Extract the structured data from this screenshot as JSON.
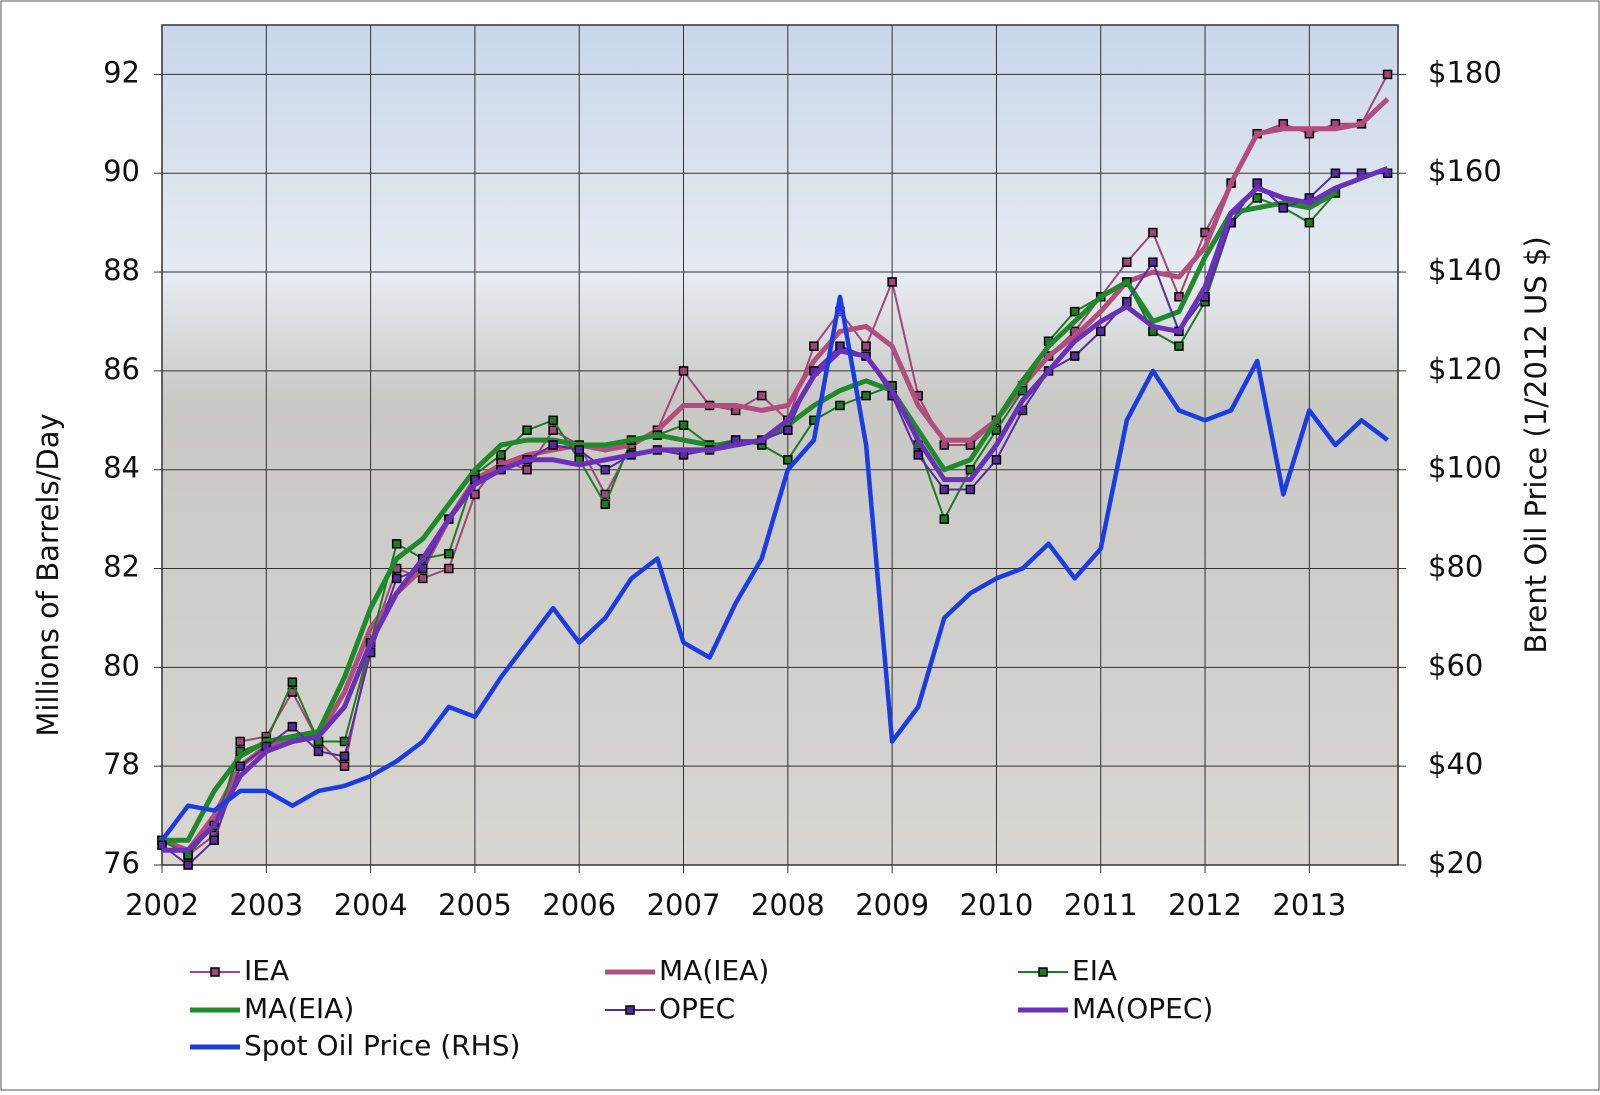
{
  "chart_data": {
    "type": "line",
    "x": [
      2002.0,
      2002.25,
      2002.5,
      2002.75,
      2003.0,
      2003.25,
      2003.5,
      2003.75,
      2004.0,
      2004.25,
      2004.5,
      2004.75,
      2005.0,
      2005.25,
      2005.5,
      2005.75,
      2006.0,
      2006.25,
      2006.5,
      2006.75,
      2007.0,
      2007.25,
      2007.5,
      2007.75,
      2008.0,
      2008.25,
      2008.5,
      2008.75,
      2009.0,
      2009.25,
      2009.5,
      2009.75,
      2010.0,
      2010.25,
      2010.5,
      2010.75,
      2011.0,
      2011.25,
      2011.5,
      2011.75,
      2012.0,
      2012.25,
      2012.5,
      2012.75,
      2013.0,
      2013.25,
      2013.5,
      2013.75
    ],
    "xlim": [
      2002,
      2013.85
    ],
    "xticks": [
      2002,
      2003,
      2004,
      2005,
      2006,
      2007,
      2008,
      2009,
      2010,
      2011,
      2012,
      2013
    ],
    "ylabel": "Millions of Barrels/Day",
    "ylim": [
      76,
      93
    ],
    "yticks": [
      76,
      78,
      80,
      82,
      84,
      86,
      88,
      90,
      92
    ],
    "y2label": "Brent Oil Price (1/2012 US $)",
    "y2lim": [
      20,
      190
    ],
    "y2ticks": [
      {
        "value": 20,
        "label": "$20"
      },
      {
        "value": 40,
        "label": "$40"
      },
      {
        "value": 60,
        "label": "$60"
      },
      {
        "value": 80,
        "label": "$80"
      },
      {
        "value": 100,
        "label": "$100"
      },
      {
        "value": 120,
        "label": "$120"
      },
      {
        "value": 140,
        "label": "$140"
      },
      {
        "value": 160,
        "label": "$160"
      },
      {
        "value": 180,
        "label": "$180"
      }
    ],
    "grid": true,
    "legend": "bottom",
    "series": [
      {
        "name": "IEA",
        "color": "#a0467a",
        "marker": "square",
        "values": [
          76.5,
          76.2,
          76.6,
          78.5,
          78.6,
          79.5,
          78.5,
          78.0,
          80.5,
          82.0,
          81.8,
          82.0,
          83.5,
          84.2,
          84.0,
          84.8,
          84.5,
          83.5,
          84.5,
          84.8,
          86.0,
          85.3,
          85.2,
          85.5,
          85.0,
          86.5,
          87.2,
          86.5,
          87.8,
          85.5,
          84.5,
          84.5,
          85.0,
          85.7,
          86.3,
          86.8,
          87.5,
          88.2,
          88.8,
          87.5,
          88.8,
          89.8,
          90.8,
          91.0,
          90.8,
          91.0,
          91.0,
          92.0
        ]
      },
      {
        "name": "MA(IEA)",
        "color": "#b24e7e",
        "values": [
          76.5,
          76.3,
          77.0,
          78.0,
          78.4,
          78.5,
          78.6,
          79.5,
          80.8,
          81.5,
          82.0,
          83.0,
          83.8,
          84.1,
          84.3,
          84.4,
          84.5,
          84.4,
          84.5,
          84.8,
          85.3,
          85.3,
          85.3,
          85.2,
          85.3,
          86.2,
          86.8,
          86.9,
          86.5,
          85.3,
          84.6,
          84.6,
          85.0,
          85.7,
          86.3,
          86.7,
          87.2,
          87.8,
          88.0,
          87.9,
          88.5,
          89.8,
          90.8,
          90.9,
          90.9,
          90.9,
          91.0,
          91.5
        ]
      },
      {
        "name": "EIA",
        "color": "#1f7a1f",
        "marker": "square",
        "values": [
          76.5,
          76.2,
          76.8,
          78.3,
          78.5,
          79.7,
          78.5,
          78.5,
          80.5,
          82.5,
          82.2,
          82.3,
          83.9,
          84.3,
          84.8,
          85.0,
          84.2,
          83.3,
          84.6,
          84.7,
          84.9,
          84.5,
          84.6,
          84.5,
          84.2,
          85.0,
          85.3,
          85.5,
          85.7,
          84.5,
          83.0,
          84.0,
          84.8,
          85.6,
          86.6,
          87.2,
          87.5,
          87.8,
          86.8,
          86.5,
          87.4,
          89.0,
          89.5,
          89.3,
          89.0,
          89.6,
          null,
          null
        ]
      },
      {
        "name": "MA(EIA)",
        "color": "#1f8a2a",
        "values": [
          76.5,
          76.5,
          77.5,
          78.2,
          78.5,
          78.6,
          78.7,
          79.8,
          81.2,
          82.2,
          82.6,
          83.3,
          84.0,
          84.5,
          84.6,
          84.6,
          84.5,
          84.5,
          84.6,
          84.7,
          84.6,
          84.5,
          84.5,
          84.6,
          84.9,
          85.3,
          85.6,
          85.8,
          85.6,
          84.8,
          84.0,
          84.2,
          85.0,
          85.8,
          86.5,
          87.0,
          87.5,
          87.8,
          87.0,
          87.2,
          88.3,
          89.2,
          89.3,
          89.4,
          89.3,
          89.6,
          null,
          null
        ]
      },
      {
        "name": "OPEC",
        "color": "#5a2aa0",
        "marker": "square",
        "values": [
          76.4,
          76.0,
          76.5,
          78.0,
          78.4,
          78.8,
          78.3,
          78.2,
          80.3,
          81.8,
          82.0,
          83.0,
          83.8,
          84.0,
          84.2,
          84.5,
          84.4,
          84.0,
          84.3,
          84.4,
          84.3,
          84.4,
          84.6,
          84.6,
          84.8,
          86.0,
          86.5,
          86.3,
          85.5,
          84.3,
          83.6,
          83.6,
          84.2,
          85.2,
          86.0,
          86.3,
          86.8,
          87.4,
          88.2,
          86.8,
          87.5,
          89.0,
          89.8,
          89.3,
          89.5,
          90.0,
          90.0,
          90.0
        ]
      },
      {
        "name": "MA(OPEC)",
        "color": "#6a30b8",
        "values": [
          76.3,
          76.3,
          76.8,
          77.8,
          78.3,
          78.5,
          78.6,
          79.2,
          80.5,
          81.5,
          82.2,
          83.0,
          83.7,
          84.0,
          84.2,
          84.2,
          84.1,
          84.2,
          84.3,
          84.4,
          84.4,
          84.4,
          84.5,
          84.6,
          85.0,
          85.9,
          86.4,
          86.3,
          85.6,
          84.6,
          83.8,
          83.8,
          84.5,
          85.4,
          86.0,
          86.6,
          87.0,
          87.3,
          86.9,
          86.8,
          87.7,
          89.2,
          89.7,
          89.5,
          89.4,
          89.7,
          89.9,
          90.1
        ]
      },
      {
        "name": "Spot Oil Price (RHS)",
        "color": "#1a3ce0",
        "axis": "y2",
        "values": [
          25,
          32,
          31,
          35,
          35,
          32,
          35,
          36,
          38,
          41,
          45,
          52,
          50,
          58,
          65,
          72,
          65,
          70,
          78,
          82,
          65,
          62,
          73,
          82,
          100,
          106,
          135,
          105,
          45,
          52,
          70,
          75,
          78,
          80,
          85,
          78,
          84,
          110,
          120,
          112,
          110,
          112,
          122,
          95,
          112,
          105,
          110,
          106
        ]
      }
    ]
  }
}
